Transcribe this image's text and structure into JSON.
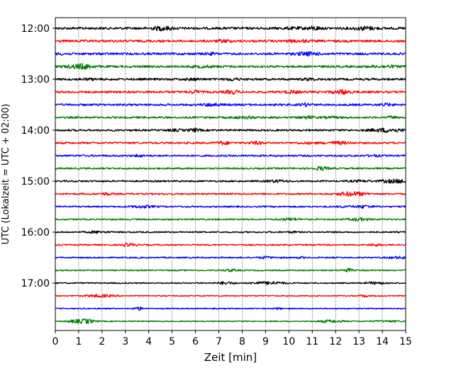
{
  "chart_data": {
    "type": "line",
    "title": "",
    "xlabel": "Zeit  [min]",
    "ylabel": "UTC (Lokalzeit = UTC + 02:00)",
    "xlim": [
      0,
      15
    ],
    "x_ticks": [
      0,
      1,
      2,
      3,
      4,
      5,
      6,
      7,
      8,
      9,
      10,
      11,
      12,
      13,
      14,
      15
    ],
    "x_grid": true,
    "y_grid": false,
    "legend": "none",
    "trace_interval_minutes": 15,
    "trace_colors": [
      "#000000",
      "#ff0000",
      "#0000ff",
      "#008000"
    ],
    "y_ticks": [
      "12:00",
      "13:00",
      "14:00",
      "15:00",
      "16:00",
      "17:00"
    ],
    "traces": [
      {
        "time": "12:00",
        "color": "#000000"
      },
      {
        "time": "12:15",
        "color": "#ff0000"
      },
      {
        "time": "12:30",
        "color": "#0000ff"
      },
      {
        "time": "12:45",
        "color": "#008000"
      },
      {
        "time": "13:00",
        "color": "#000000"
      },
      {
        "time": "13:15",
        "color": "#ff0000"
      },
      {
        "time": "13:30",
        "color": "#0000ff"
      },
      {
        "time": "13:45",
        "color": "#008000"
      },
      {
        "time": "14:00",
        "color": "#000000"
      },
      {
        "time": "14:15",
        "color": "#ff0000"
      },
      {
        "time": "14:30",
        "color": "#0000ff"
      },
      {
        "time": "14:45",
        "color": "#008000"
      },
      {
        "time": "15:00",
        "color": "#000000"
      },
      {
        "time": "15:15",
        "color": "#ff0000"
      },
      {
        "time": "15:30",
        "color": "#0000ff"
      },
      {
        "time": "15:45",
        "color": "#008000"
      },
      {
        "time": "16:00",
        "color": "#000000"
      },
      {
        "time": "16:15",
        "color": "#ff0000"
      },
      {
        "time": "16:30",
        "color": "#0000ff"
      },
      {
        "time": "16:45",
        "color": "#008000"
      },
      {
        "time": "17:00",
        "color": "#000000"
      },
      {
        "time": "17:15",
        "color": "#ff0000"
      },
      {
        "time": "17:30",
        "color": "#0000ff"
      },
      {
        "time": "17:45",
        "color": "#008000"
      }
    ]
  }
}
